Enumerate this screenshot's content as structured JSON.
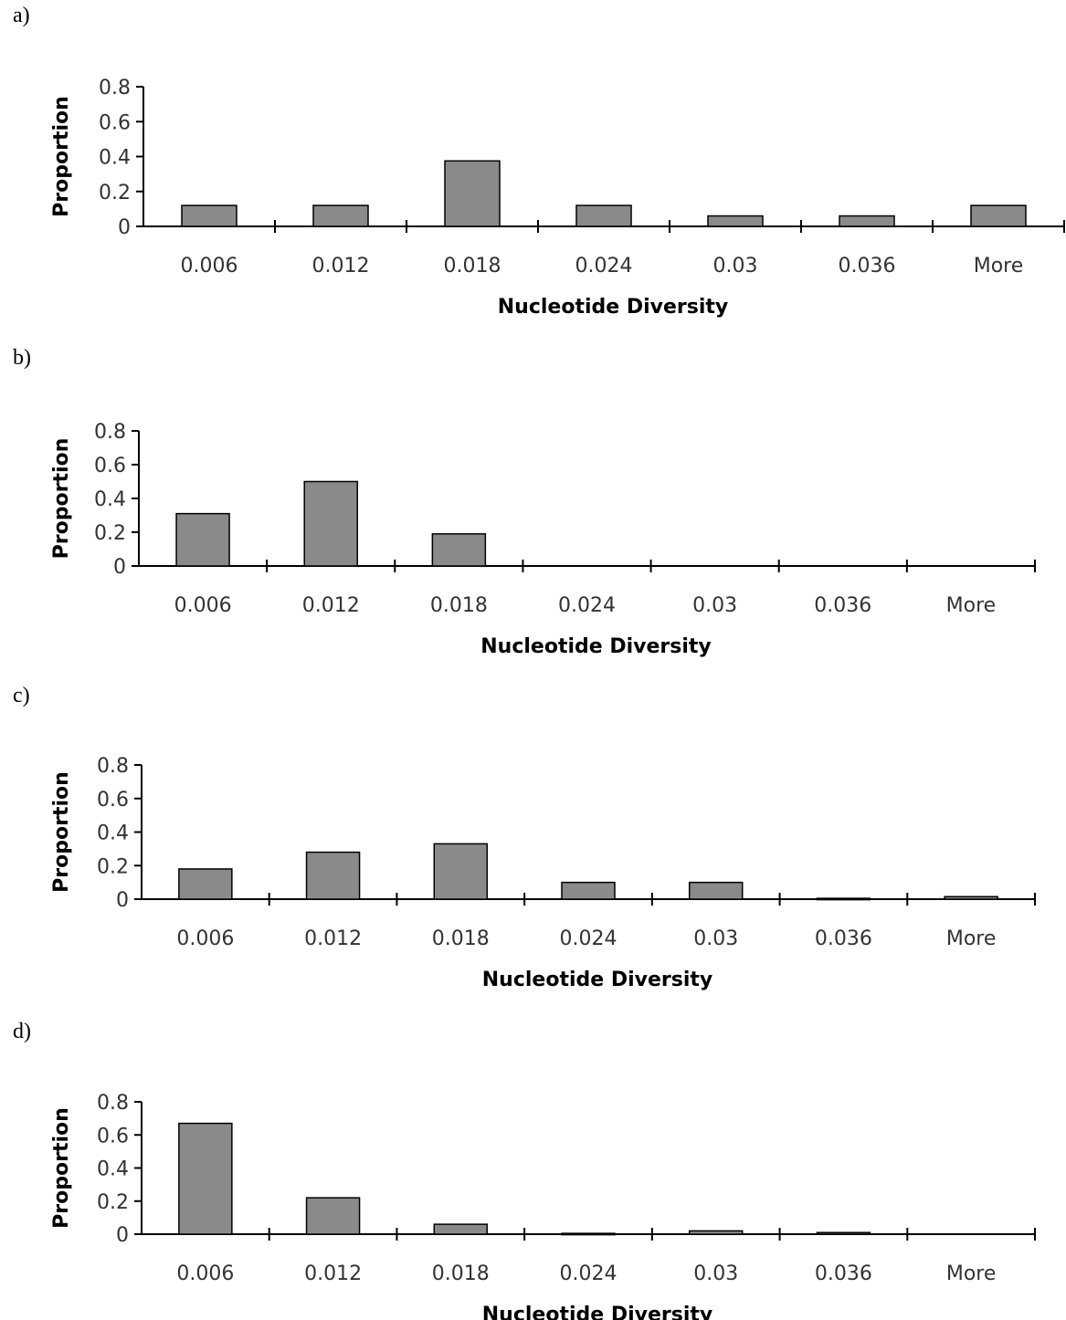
{
  "chart_data": [
    {
      "type": "bar",
      "panel": "a)",
      "categories": [
        "0.006",
        "0.012",
        "0.018",
        "0.024",
        "0.03",
        "0.036",
        "More"
      ],
      "values": [
        0.12,
        0.12,
        0.375,
        0.12,
        0.06,
        0.06,
        0.12
      ],
      "xlabel": "Nucleotide Diversity",
      "ylabel": "Proportion",
      "yticks": [
        "0",
        "0.2",
        "0.4",
        "0.6",
        "0.8"
      ],
      "ylim": [
        0,
        0.8
      ]
    },
    {
      "type": "bar",
      "panel": "b)",
      "categories": [
        "0.006",
        "0.012",
        "0.018",
        "0.024",
        "0.03",
        "0.036",
        "More"
      ],
      "values": [
        0.31,
        0.5,
        0.19,
        0,
        0,
        0,
        0
      ],
      "xlabel": "Nucleotide Diversity",
      "ylabel": "Proportion",
      "yticks": [
        "0",
        "0.2",
        "0.4",
        "0.6",
        "0.8"
      ],
      "ylim": [
        0,
        0.8
      ]
    },
    {
      "type": "bar",
      "panel": "c)",
      "categories": [
        "0.006",
        "0.012",
        "0.018",
        "0.024",
        "0.03",
        "0.036",
        "More"
      ],
      "values": [
        0.18,
        0.28,
        0.33,
        0.1,
        0.1,
        0.005,
        0.015
      ],
      "xlabel": "Nucleotide Diversity",
      "ylabel": "Proportion",
      "yticks": [
        "0",
        "0.2",
        "0.4",
        "0.6",
        "0.8"
      ],
      "ylim": [
        0,
        0.8
      ]
    },
    {
      "type": "bar",
      "panel": "d)",
      "categories": [
        "0.006",
        "0.012",
        "0.018",
        "0.024",
        "0.03",
        "0.036",
        "More"
      ],
      "values": [
        0.67,
        0.22,
        0.06,
        0.005,
        0.02,
        0.01,
        0
      ],
      "xlabel": "Nucleotide Diversity",
      "ylabel": "Proportion",
      "yticks": [
        "0",
        "0.2",
        "0.4",
        "0.6",
        "0.8"
      ],
      "ylim": [
        0,
        0.8
      ]
    }
  ],
  "colors": {
    "bar_fill": "#8a8a8a",
    "bar_stroke": "#000000"
  }
}
